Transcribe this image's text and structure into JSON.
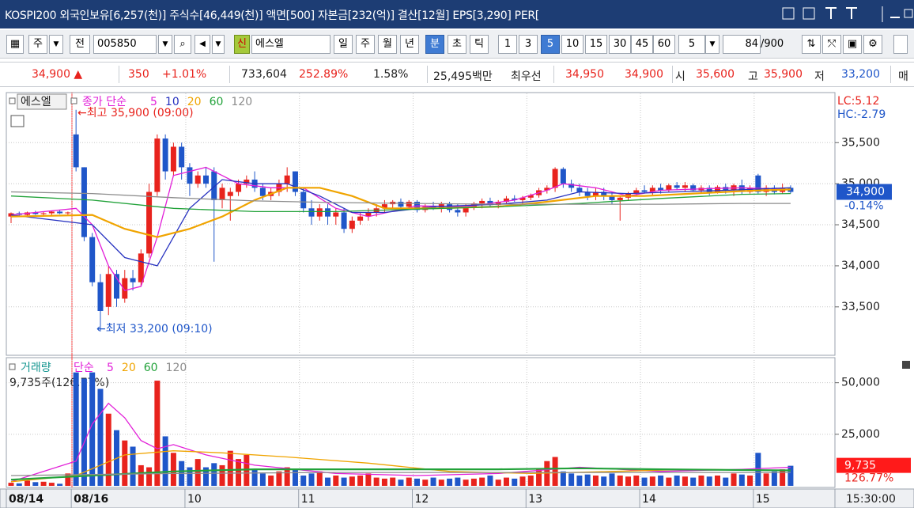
{
  "title_bar": "KOSPI200 외국인보유[6,257(천)] 주식수[46,449(천)] 액면[500] 자본금[232(억)] 결산[12월] EPS[3,290] PER[",
  "toolbar": {
    "market": "주",
    "scope": "전",
    "code": "005850",
    "badge": "신",
    "name": "에스엘",
    "periods": [
      "일",
      "주",
      "월",
      "년",
      "분",
      "초",
      "틱"
    ],
    "active_period": 4,
    "intervals": [
      "1",
      "3",
      "5",
      "10",
      "15",
      "30",
      "45",
      "60"
    ],
    "active_interval": 2,
    "unit": "5",
    "count": "84",
    "max": "/900"
  },
  "quote": [
    "34,900 ▲",
    "350",
    "+1.01%",
    "733,604",
    "252.89%",
    "1.58%",
    "25,495백만",
    "최우선",
    "34,950",
    "34,900",
    "시",
    "35,600",
    "고",
    "35,900",
    "저",
    "33,200",
    "매"
  ],
  "chart_data": [
    {
      "type": "candlestick",
      "name": "에스엘",
      "ma_label": "종가 단순",
      "up_color": "#e8231d",
      "down_color": "#1f56c9",
      "open": [
        34600,
        34640,
        34620,
        34650,
        34630,
        34640,
        34660,
        34640,
        35600,
        35200,
        34350,
        33800,
        33500,
        33900,
        33600,
        33850,
        33800,
        34150,
        34900,
        35550,
        35150,
        35450,
        35200,
        35000,
        35100,
        35150,
        34800,
        34850,
        34900,
        35000,
        35050,
        34950,
        34850,
        34900,
        35000,
        35150,
        34900,
        34700,
        34600,
        34700,
        34600,
        34650,
        34450,
        34550,
        34600,
        34650,
        34700,
        34750,
        34780,
        34720,
        34780,
        34680,
        34720,
        34700,
        34750,
        34680,
        34650,
        34720,
        34760,
        34790,
        34740,
        34780,
        34820,
        34800,
        34830,
        34860,
        34920,
        34950,
        35180,
        35000,
        34950,
        34900,
        34850,
        34900,
        34850,
        34800,
        34830,
        34880,
        34920,
        34900,
        34950,
        34920,
        34980,
        34950,
        34980,
        34920,
        34950,
        34900,
        34960,
        34920,
        34980,
        34900,
        35100,
        34900,
        34950,
        34900,
        34950
      ],
      "high": [
        34650,
        34660,
        34660,
        34670,
        34660,
        34670,
        34680,
        34660,
        35900,
        35200,
        34400,
        33900,
        34000,
        33950,
        33950,
        33950,
        34200,
        35000,
        35600,
        35600,
        35500,
        35500,
        35250,
        35150,
        35200,
        35200,
        35000,
        34950,
        35050,
        35100,
        35150,
        35000,
        34950,
        35050,
        35200,
        35150,
        34950,
        34800,
        34750,
        34750,
        34700,
        34700,
        34600,
        34650,
        34700,
        34750,
        34800,
        34800,
        34820,
        34800,
        34800,
        34750,
        34780,
        34780,
        34780,
        34750,
        34750,
        34780,
        34820,
        34830,
        34800,
        34850,
        34860,
        34850,
        34880,
        34950,
        34980,
        35200,
        35200,
        35050,
        35000,
        34950,
        34950,
        34950,
        34900,
        34850,
        34900,
        34950,
        34980,
        34980,
        35000,
        35000,
        35020,
        35020,
        35000,
        34980,
        34980,
        34980,
        35000,
        35000,
        35050,
        34980,
        35120,
        34980,
        34980,
        35000,
        34980
      ],
      "low": [
        34520,
        34600,
        34610,
        34620,
        34600,
        34620,
        34630,
        34620,
        35150,
        34300,
        33750,
        33200,
        33400,
        33500,
        33550,
        33700,
        33750,
        34100,
        34850,
        35050,
        35100,
        35050,
        34850,
        34950,
        34950,
        34050,
        34700,
        34550,
        34850,
        34950,
        34900,
        34800,
        34800,
        34850,
        34900,
        34850,
        34650,
        34500,
        34550,
        34500,
        34500,
        34400,
        34400,
        34500,
        34550,
        34600,
        34650,
        34700,
        34700,
        34700,
        34650,
        34650,
        34680,
        34650,
        34650,
        34600,
        34600,
        34680,
        34700,
        34720,
        34700,
        34750,
        34780,
        34750,
        34800,
        34830,
        34880,
        34900,
        34950,
        34900,
        34850,
        34800,
        34800,
        34800,
        34750,
        34550,
        34800,
        34850,
        34880,
        34860,
        34880,
        34900,
        34920,
        34900,
        34900,
        34880,
        34860,
        34880,
        34880,
        34850,
        34870,
        34880,
        34880,
        34850,
        34870,
        34880,
        34880
      ],
      "close": [
        34640,
        34620,
        34650,
        34630,
        34640,
        34660,
        34640,
        34650,
        35200,
        34350,
        33800,
        33450,
        33900,
        33600,
        33850,
        33800,
        34150,
        34900,
        35550,
        35150,
        35450,
        35200,
        35000,
        35100,
        35000,
        34800,
        34950,
        34900,
        35000,
        35050,
        34950,
        34850,
        34900,
        35000,
        35100,
        34900,
        34700,
        34600,
        34700,
        34600,
        34650,
        34450,
        34550,
        34600,
        34650,
        34700,
        34750,
        34780,
        34720,
        34780,
        34680,
        34720,
        34700,
        34750,
        34680,
        34650,
        34720,
        34760,
        34790,
        34740,
        34780,
        34820,
        34800,
        34830,
        34860,
        34920,
        34950,
        35180,
        35000,
        34950,
        34900,
        34850,
        34900,
        34850,
        34800,
        34830,
        34880,
        34920,
        34900,
        34950,
        34920,
        34980,
        34950,
        34980,
        34920,
        34950,
        34900,
        34960,
        34920,
        34980,
        34900,
        34950,
        34900,
        34950,
        34900,
        34950,
        34900
      ],
      "ylim": [
        32920,
        36100
      ],
      "yticks": [
        {
          "value": 33500,
          "label": "33,500"
        },
        {
          "value": 34000,
          "label": "34,000"
        },
        {
          "value": 34500,
          "label": "34,500"
        },
        {
          "value": 35000,
          "label": "35,000"
        },
        {
          "value": 35500,
          "label": "35,500"
        }
      ],
      "grid": true,
      "series": [
        {
          "name": "5",
          "color": "#e21fd8",
          "x": [
            0,
            8,
            10,
            12,
            14,
            16,
            18,
            20,
            24,
            28,
            32,
            36,
            40,
            44,
            50,
            56,
            62,
            66,
            68,
            72,
            76,
            80,
            86,
            90,
            96
          ],
          "values": [
            34620,
            34700,
            34500,
            34000,
            33700,
            33750,
            34350,
            35100,
            35200,
            35000,
            34950,
            34950,
            34700,
            34600,
            34730,
            34720,
            34800,
            34920,
            35000,
            34950,
            34850,
            34920,
            34940,
            34950,
            34930
          ]
        },
        {
          "name": "10",
          "color": "#2732c0",
          "x": [
            0,
            10,
            14,
            18,
            22,
            26,
            30,
            34,
            38,
            42,
            46,
            52,
            60,
            66,
            70,
            76,
            82,
            88,
            96
          ],
          "values": [
            34620,
            34500,
            34100,
            34000,
            34700,
            35050,
            35000,
            35000,
            34850,
            34650,
            34650,
            34720,
            34750,
            34800,
            34900,
            34880,
            34900,
            34920,
            34950
          ]
        },
        {
          "name": "20",
          "color": "#f0a400",
          "x": [
            0,
            10,
            14,
            18,
            22,
            26,
            30,
            34,
            38,
            42,
            46,
            52,
            60,
            66,
            72,
            78,
            84,
            90,
            96
          ],
          "values": [
            34600,
            34620,
            34450,
            34350,
            34450,
            34600,
            34800,
            34950,
            34950,
            34850,
            34700,
            34700,
            34720,
            34780,
            34850,
            34850,
            34880,
            34910,
            34930
          ]
        },
        {
          "name": "60",
          "color": "#22a23a",
          "x": [
            0,
            10,
            20,
            30,
            40,
            50,
            60,
            70,
            80,
            90,
            96
          ],
          "values": [
            34850,
            34800,
            34700,
            34660,
            34660,
            34690,
            34720,
            34760,
            34820,
            34870,
            34880
          ]
        },
        {
          "name": "120",
          "color": "#8c8c8c",
          "x": [
            0,
            10,
            20,
            30,
            40,
            50,
            60,
            70,
            80,
            90,
            96
          ],
          "values": [
            34900,
            34880,
            34830,
            34790,
            34770,
            34760,
            34750,
            34750,
            34750,
            34760,
            34760
          ]
        }
      ],
      "annotations": [
        "←최고 35,900 (09:00)",
        "←최저 33,200 (09:10)"
      ],
      "indicators": [
        "LC:5.12",
        "HC:-2.79"
      ],
      "last": {
        "value": 34900,
        "label": "34,900"
      },
      "change": "-0.14%"
    },
    {
      "type": "bar",
      "name": "거래량",
      "ma_label": "단순",
      "info": "9,735주(126.77%)",
      "values": [
        1500,
        1200,
        2500,
        1800,
        2000,
        1500,
        1000,
        6000,
        55000,
        52000,
        55000,
        47000,
        35000,
        27000,
        22000,
        19000,
        10000,
        9000,
        51000,
        24000,
        16000,
        12000,
        9000,
        13000,
        9000,
        11000,
        10000,
        17000,
        13000,
        15000,
        8000,
        6000,
        5000,
        7000,
        9000,
        8000,
        5000,
        6000,
        7000,
        4000,
        5000,
        4000,
        4500,
        5000,
        6000,
        4000,
        3500,
        4000,
        3000,
        4000,
        3500,
        3000,
        4000,
        3000,
        3500,
        4000,
        3000,
        3500,
        4000,
        5000,
        3000,
        4000,
        3500,
        4500,
        5000,
        8000,
        12000,
        14000,
        7000,
        6000,
        5000,
        5500,
        5000,
        4500,
        6000,
        5000,
        4500,
        5000,
        4000,
        4500,
        5000,
        4000,
        5000,
        4500,
        4000,
        5000,
        4500,
        5000,
        4000,
        6000,
        5500,
        5000,
        16000,
        6000,
        7000,
        8000,
        9735
      ],
      "ylim": [
        0,
        61000
      ],
      "yticks": [
        {
          "value": 25000,
          "label": "25,000"
        },
        {
          "value": 50000,
          "label": "50,000"
        }
      ],
      "series": [
        {
          "name": "5",
          "color": "#e21fd8",
          "x": [
            0,
            8,
            10,
            12,
            14,
            16,
            18,
            20,
            24,
            30,
            40,
            50,
            60,
            70,
            80,
            90,
            96
          ],
          "values": [
            2000,
            12000,
            30000,
            40000,
            33000,
            22000,
            18000,
            20000,
            15000,
            10000,
            6000,
            5000,
            6000,
            9000,
            7000,
            8000,
            9000
          ]
        },
        {
          "name": "20",
          "color": "#f0a400",
          "x": [
            0,
            8,
            14,
            20,
            26,
            34,
            44,
            54,
            64,
            74,
            84,
            96
          ],
          "values": [
            2000,
            5000,
            15000,
            17000,
            16000,
            14000,
            11000,
            7000,
            6000,
            7000,
            8000,
            7500
          ]
        },
        {
          "name": "60",
          "color": "#22a23a",
          "x": [
            0,
            10,
            20,
            30,
            40,
            50,
            60,
            70,
            80,
            96
          ],
          "values": [
            3000,
            5000,
            7000,
            8000,
            8000,
            8000,
            8000,
            8500,
            8000,
            7500
          ]
        },
        {
          "name": "120",
          "color": "#8c8c8c",
          "x": [
            0,
            20,
            40,
            60,
            80,
            96
          ],
          "values": [
            5000,
            6000,
            6500,
            6500,
            6500,
            6500
          ]
        }
      ],
      "categories": [
        "08/14",
        null,
        null,
        null,
        null,
        null,
        null,
        null,
        "08/16",
        null,
        null,
        null,
        null,
        null,
        null,
        null,
        null,
        null,
        null,
        null,
        null,
        null,
        "10",
        null,
        null,
        null,
        null,
        null,
        null,
        null,
        null,
        null,
        null,
        null,
        null,
        null,
        "11",
        null,
        null,
        null,
        null,
        null,
        null,
        null,
        null,
        null,
        null,
        null,
        null,
        null,
        "12",
        null,
        null,
        null,
        null,
        null,
        null,
        null,
        null,
        null,
        null,
        null,
        null,
        null,
        "13",
        null,
        null,
        null,
        null,
        null,
        null,
        null,
        null,
        null,
        null,
        null,
        null,
        null,
        "14",
        null,
        null,
        null,
        null,
        null,
        null,
        null,
        null,
        null,
        null,
        null,
        null,
        null,
        "15",
        null,
        null,
        null,
        null
      ],
      "last": {
        "value": 9735,
        "label": "9,735"
      },
      "ratio": "126.77%",
      "time": "15:30:00"
    }
  ]
}
